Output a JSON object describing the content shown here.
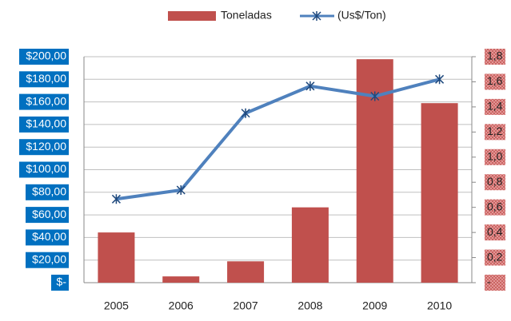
{
  "chart_data": {
    "type": "bar_line",
    "categories": [
      "2005",
      "2006",
      "2007",
      "2008",
      "2009",
      "2010"
    ],
    "series": [
      {
        "name": "Toneladas",
        "type": "bar",
        "color": "#c0504d",
        "axis": "y2",
        "values": [
          0.4,
          0.05,
          0.17,
          0.6,
          1.78,
          1.43
        ]
      },
      {
        "name": "(Us$/Ton)",
        "type": "line",
        "color": "#4f81bd",
        "axis": "y",
        "values": [
          74,
          82,
          150,
          174,
          165,
          180
        ]
      }
    ],
    "ylim": [
      0,
      200
    ],
    "yticks": [
      {
        "value": 0,
        "label": "$-"
      },
      {
        "value": 20,
        "label": "$20,00"
      },
      {
        "value": 40,
        "label": "$40,00"
      },
      {
        "value": 60,
        "label": "$60,00"
      },
      {
        "value": 80,
        "label": "$80,00"
      },
      {
        "value": 100,
        "label": "$100,00"
      },
      {
        "value": 120,
        "label": "$120,00"
      },
      {
        "value": 140,
        "label": "$140,00"
      },
      {
        "value": 160,
        "label": "$160,00"
      },
      {
        "value": 180,
        "label": "$180,00"
      },
      {
        "value": 200,
        "label": "$200,00"
      }
    ],
    "y2lim": [
      0,
      1.8
    ],
    "y2ticks": [
      {
        "value": 0,
        "label": "-"
      },
      {
        "value": 0.2,
        "label": "0,2"
      },
      {
        "value": 0.4,
        "label": "0,4"
      },
      {
        "value": 0.6,
        "label": "0,6"
      },
      {
        "value": 0.8,
        "label": "0,8"
      },
      {
        "value": 1.0,
        "label": "1,0"
      },
      {
        "value": 1.2,
        "label": "1,2"
      },
      {
        "value": 1.4,
        "label": "1,4"
      },
      {
        "value": 1.6,
        "label": "1,6"
      },
      {
        "value": 1.8,
        "label": "1,8"
      }
    ],
    "grid": true
  }
}
